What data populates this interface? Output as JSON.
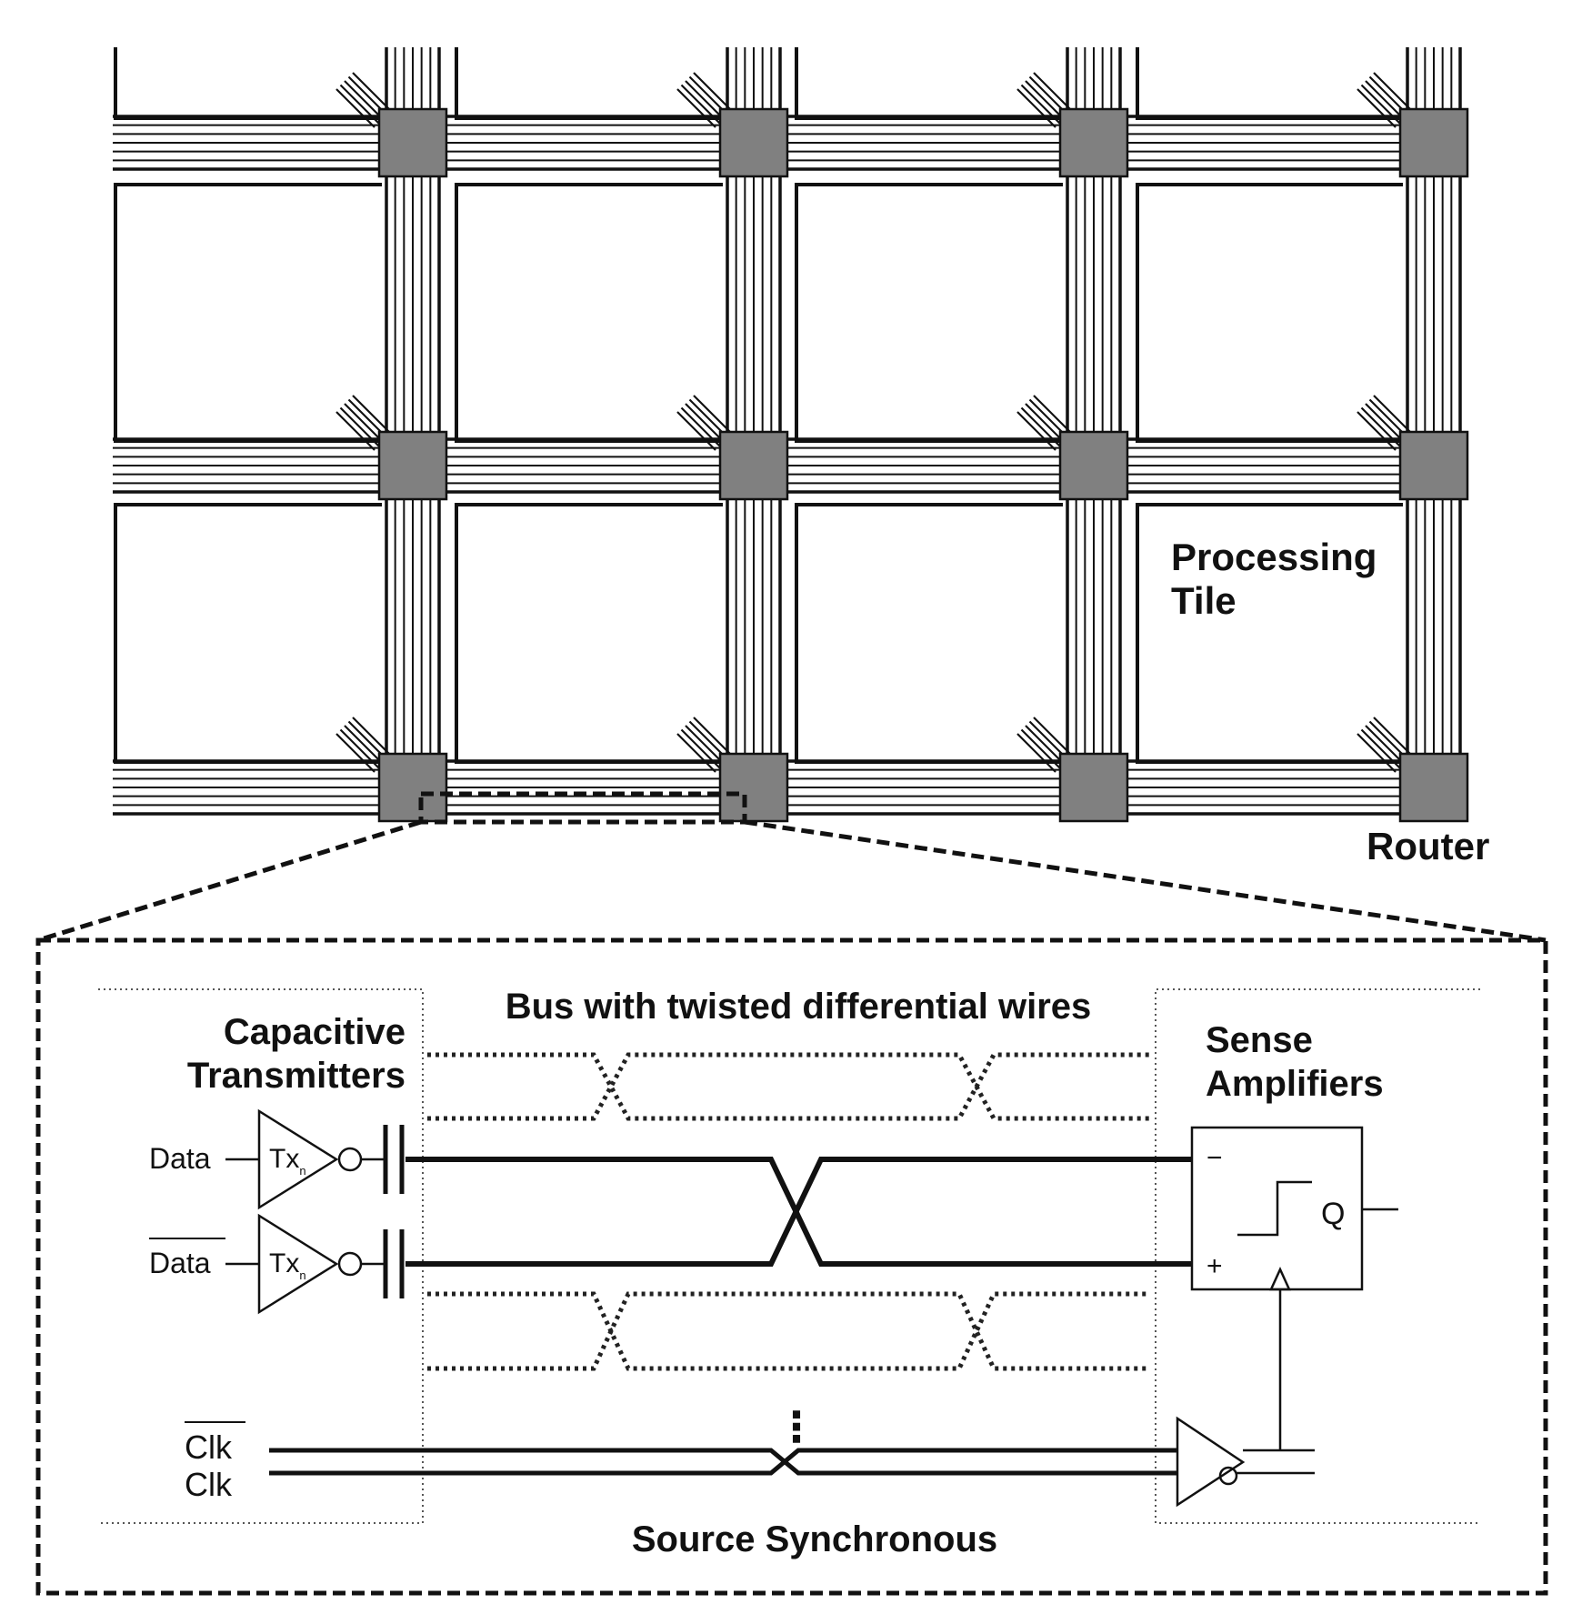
{
  "labels": {
    "processing_tile": [
      "Processing",
      "Tile"
    ],
    "router": "Router",
    "bus": "Bus with twisted differential wires",
    "capacitive": [
      "Capacitive",
      "Transmitters"
    ],
    "sense": [
      "Sense",
      "Amplifiers"
    ],
    "source_sync": "Source Synchronous",
    "data": "Data",
    "data_bar": "Data",
    "tx": "Tx",
    "tx_sub": "n",
    "clk_bar": "Clk",
    "clk": "Clk",
    "q": "Q",
    "minus": "−",
    "plus": "+",
    "ellipsis": "⋮"
  },
  "colors": {
    "router_fill": "#808080",
    "line": "#111111",
    "background": "#ffffff"
  }
}
